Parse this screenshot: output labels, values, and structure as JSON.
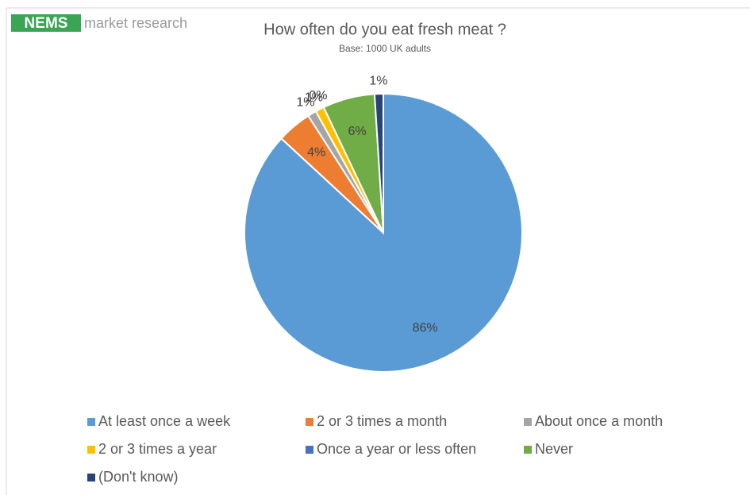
{
  "logo": {
    "brand": "NEMS",
    "tagline": "market research"
  },
  "chart_data": {
    "type": "pie",
    "title": "How often do you eat fresh meat ?",
    "subtitle": "Base: 1000 UK adults",
    "categories": [
      "At least once a week",
      "2 or 3 times a month",
      "About once a month",
      "2 or 3 times a year",
      "Once a year or less often",
      "Never",
      "(Don't know)"
    ],
    "values": [
      86,
      4,
      1,
      1,
      0,
      6,
      1
    ],
    "value_labels": [
      "86%",
      "4%",
      "1%",
      "1%",
      "0%",
      "6%",
      "1%"
    ],
    "colors": [
      "#5B9BD5",
      "#ED7D31",
      "#A5A5A5",
      "#FFC000",
      "#4472C4",
      "#70AD47",
      "#264478"
    ],
    "legend": "bottom"
  }
}
